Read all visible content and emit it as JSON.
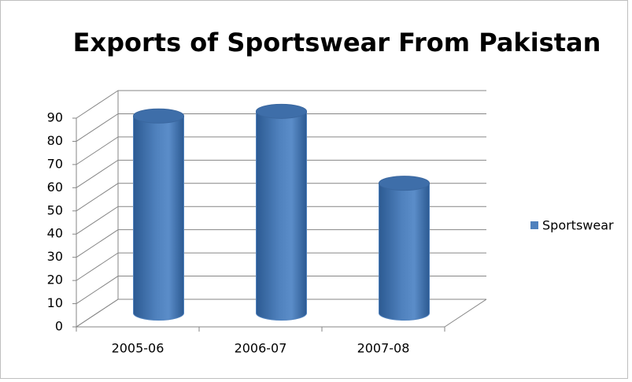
{
  "chart_data": {
    "type": "bar3d",
    "title": "Exports of Sportswear From Pakistan",
    "categories": [
      "2005-06",
      "2006-07",
      "2007-08"
    ],
    "series": [
      {
        "name": "Sportswear",
        "color": "#4f81bd",
        "values": [
          85,
          87,
          56
        ]
      }
    ],
    "ylim": [
      0,
      90
    ],
    "yticks": [
      0,
      10,
      20,
      30,
      40,
      50,
      60,
      70,
      80,
      90
    ],
    "grid": true,
    "legend": "right"
  }
}
